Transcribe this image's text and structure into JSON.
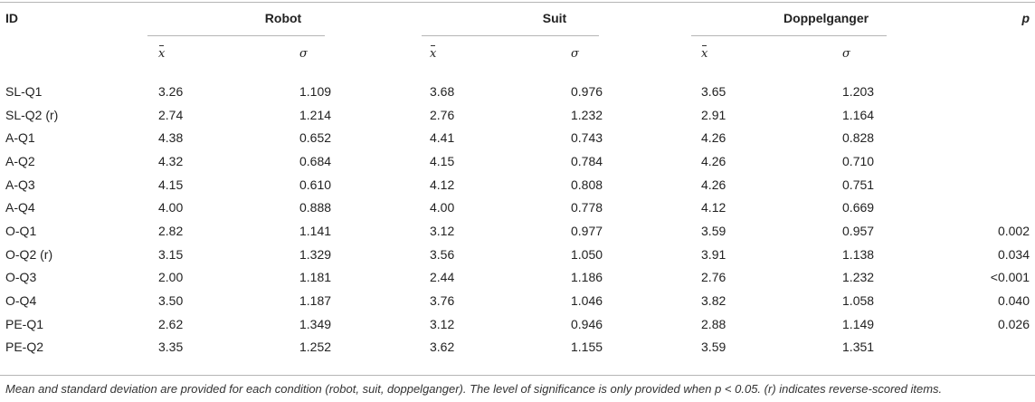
{
  "headers": {
    "id": "ID",
    "robot": "Robot",
    "suit": "Suit",
    "doppelganger": "Doppelganger",
    "p": "p",
    "mean_symbol": "x",
    "sd_symbol": "σ"
  },
  "rows": [
    {
      "id": "SL-Q1",
      "r_mean": "3.26",
      "r_sd": "1.109",
      "s_mean": "3.68",
      "s_sd": "0.976",
      "d_mean": "3.65",
      "d_sd": "1.203",
      "p": ""
    },
    {
      "id": "SL-Q2 (r)",
      "r_mean": "2.74",
      "r_sd": "1.214",
      "s_mean": "2.76",
      "s_sd": "1.232",
      "d_mean": "2.91",
      "d_sd": "1.164",
      "p": ""
    },
    {
      "id": "A-Q1",
      "r_mean": "4.38",
      "r_sd": "0.652",
      "s_mean": "4.41",
      "s_sd": "0.743",
      "d_mean": "4.26",
      "d_sd": "0.828",
      "p": ""
    },
    {
      "id": "A-Q2",
      "r_mean": "4.32",
      "r_sd": "0.684",
      "s_mean": "4.15",
      "s_sd": "0.784",
      "d_mean": "4.26",
      "d_sd": "0.710",
      "p": ""
    },
    {
      "id": "A-Q3",
      "r_mean": "4.15",
      "r_sd": "0.610",
      "s_mean": "4.12",
      "s_sd": "0.808",
      "d_mean": "4.26",
      "d_sd": "0.751",
      "p": ""
    },
    {
      "id": "A-Q4",
      "r_mean": "4.00",
      "r_sd": "0.888",
      "s_mean": "4.00",
      "s_sd": "0.778",
      "d_mean": "4.12",
      "d_sd": "0.669",
      "p": ""
    },
    {
      "id": "O-Q1",
      "r_mean": "2.82",
      "r_sd": "1.141",
      "s_mean": "3.12",
      "s_sd": "0.977",
      "d_mean": "3.59",
      "d_sd": "0.957",
      "p": "0.002"
    },
    {
      "id": "O-Q2 (r)",
      "r_mean": "3.15",
      "r_sd": "1.329",
      "s_mean": "3.56",
      "s_sd": "1.050",
      "d_mean": "3.91",
      "d_sd": "1.138",
      "p": "0.034"
    },
    {
      "id": "O-Q3",
      "r_mean": "2.00",
      "r_sd": "1.181",
      "s_mean": "2.44",
      "s_sd": "1.186",
      "d_mean": "2.76",
      "d_sd": "1.232",
      "p": "<0.001"
    },
    {
      "id": "O-Q4",
      "r_mean": "3.50",
      "r_sd": "1.187",
      "s_mean": "3.76",
      "s_sd": "1.046",
      "d_mean": "3.82",
      "d_sd": "1.058",
      "p": "0.040"
    },
    {
      "id": "PE-Q1",
      "r_mean": "2.62",
      "r_sd": "1.349",
      "s_mean": "3.12",
      "s_sd": "0.946",
      "d_mean": "2.88",
      "d_sd": "1.149",
      "p": "0.026"
    },
    {
      "id": "PE-Q2",
      "r_mean": "3.35",
      "r_sd": "1.252",
      "s_mean": "3.62",
      "s_sd": "1.155",
      "d_mean": "3.59",
      "d_sd": "1.351",
      "p": ""
    }
  ],
  "footnote": "Mean and standard deviation are provided for each condition (robot, suit, doppelganger). The level of significance is only provided when p < 0.05. (r) indicates reverse-scored items."
}
